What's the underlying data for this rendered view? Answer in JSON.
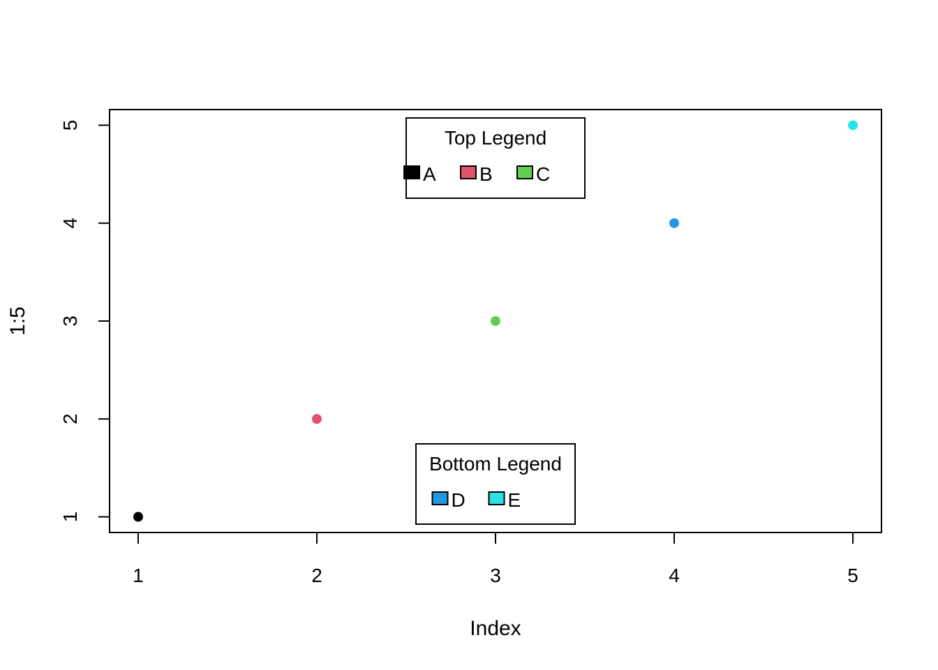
{
  "chart_data": {
    "type": "scatter",
    "title": "",
    "xlabel": "Index",
    "ylabel": "1:5",
    "x": [
      1,
      2,
      3,
      4,
      5
    ],
    "y": [
      1,
      2,
      3,
      4,
      5
    ],
    "point_colors": [
      "#000000",
      "#DF536B",
      "#61D04F",
      "#2297E6",
      "#28E2E5"
    ],
    "xlim": [
      0.84,
      5.16
    ],
    "ylim": [
      0.84,
      5.16
    ],
    "xticks": [
      "1",
      "2",
      "3",
      "4",
      "5"
    ],
    "yticks": [
      "1",
      "2",
      "3",
      "4",
      "5"
    ],
    "grid": false,
    "legends": [
      {
        "title": "Top Legend",
        "placement": "top",
        "entries": [
          {
            "label": "A",
            "color": "#000000"
          },
          {
            "label": "B",
            "color": "#DF536B"
          },
          {
            "label": "C",
            "color": "#61D04F"
          }
        ]
      },
      {
        "title": "Bottom Legend",
        "placement": "bottom",
        "entries": [
          {
            "label": "D",
            "color": "#2297E6"
          },
          {
            "label": "E",
            "color": "#28E2E5"
          }
        ]
      }
    ]
  }
}
